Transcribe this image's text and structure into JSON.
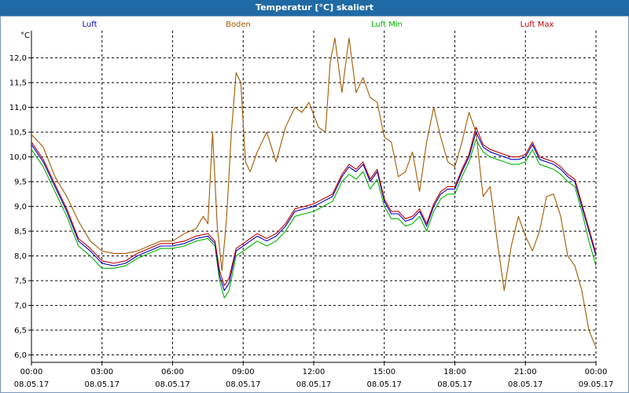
{
  "window": {
    "title": "Temperatur [°C] skaliert"
  },
  "chart_data": {
    "type": "line",
    "title": "Temperatur [°C] skaliert",
    "ylabel": "°C",
    "xlabel": "",
    "ylim": [
      5.85,
      12.55
    ],
    "yticks": [
      6.0,
      6.5,
      7.0,
      7.5,
      8.0,
      8.5,
      9.0,
      9.5,
      10.0,
      10.5,
      11.0,
      11.5,
      12.0
    ],
    "ytick_labels": [
      "6,0",
      "6,5",
      "7,0",
      "7,5",
      "8,0",
      "8,5",
      "9,0",
      "9,5",
      "10,0",
      "10,5",
      "11,0",
      "11,5",
      "12,0"
    ],
    "xlim_hours": [
      0,
      24
    ],
    "xticks": [
      {
        "h": 0,
        "time": "00:00",
        "date": "08.05.17"
      },
      {
        "h": 3,
        "time": "03:00",
        "date": "08.05.17"
      },
      {
        "h": 6,
        "time": "06:00",
        "date": "08.05.17"
      },
      {
        "h": 9,
        "time": "09:00",
        "date": "08.05.17"
      },
      {
        "h": 12,
        "time": "12:00",
        "date": "08.05.17"
      },
      {
        "h": 15,
        "time": "15:00",
        "date": "08.05.17"
      },
      {
        "h": 18,
        "time": "18:00",
        "date": "08.05.17"
      },
      {
        "h": 21,
        "time": "21:00",
        "date": "08.05.17"
      },
      {
        "h": 24,
        "time": "00:00",
        "date": "09.05.17"
      }
    ],
    "grid": true,
    "legend_position": "top",
    "series": [
      {
        "name": "Luft",
        "color": "#0000c0",
        "points": [
          [
            0,
            10.25
          ],
          [
            0.5,
            9.9
          ],
          [
            1,
            9.4
          ],
          [
            1.5,
            8.9
          ],
          [
            2,
            8.3
          ],
          [
            2.5,
            8.1
          ],
          [
            3,
            7.85
          ],
          [
            3.5,
            7.8
          ],
          [
            4,
            7.85
          ],
          [
            4.5,
            8.0
          ],
          [
            5,
            8.1
          ],
          [
            5.5,
            8.2
          ],
          [
            6,
            8.2
          ],
          [
            6.5,
            8.25
          ],
          [
            7,
            8.35
          ],
          [
            7.5,
            8.4
          ],
          [
            7.8,
            8.25
          ],
          [
            8,
            7.6
          ],
          [
            8.2,
            7.3
          ],
          [
            8.4,
            7.45
          ],
          [
            8.7,
            8.1
          ],
          [
            9,
            8.2
          ],
          [
            9.3,
            8.3
          ],
          [
            9.6,
            8.4
          ],
          [
            10,
            8.3
          ],
          [
            10.4,
            8.4
          ],
          [
            10.8,
            8.6
          ],
          [
            11.2,
            8.9
          ],
          [
            11.6,
            8.95
          ],
          [
            12,
            9.0
          ],
          [
            12.4,
            9.1
          ],
          [
            12.8,
            9.2
          ],
          [
            13.2,
            9.6
          ],
          [
            13.5,
            9.8
          ],
          [
            13.8,
            9.7
          ],
          [
            14.1,
            9.85
          ],
          [
            14.4,
            9.5
          ],
          [
            14.7,
            9.7
          ],
          [
            15,
            9.1
          ],
          [
            15.3,
            8.85
          ],
          [
            15.6,
            8.85
          ],
          [
            15.9,
            8.7
          ],
          [
            16.2,
            8.75
          ],
          [
            16.5,
            8.9
          ],
          [
            16.8,
            8.6
          ],
          [
            17.1,
            9.0
          ],
          [
            17.4,
            9.25
          ],
          [
            17.7,
            9.35
          ],
          [
            18,
            9.35
          ],
          [
            18.3,
            9.7
          ],
          [
            18.6,
            10.0
          ],
          [
            18.9,
            10.5
          ],
          [
            19.2,
            10.2
          ],
          [
            19.5,
            10.1
          ],
          [
            19.8,
            10.05
          ],
          [
            20.1,
            10.0
          ],
          [
            20.4,
            9.95
          ],
          [
            20.7,
            9.95
          ],
          [
            21,
            10.0
          ],
          [
            21.3,
            10.25
          ],
          [
            21.6,
            9.95
          ],
          [
            21.9,
            9.9
          ],
          [
            22.2,
            9.85
          ],
          [
            22.5,
            9.75
          ],
          [
            22.8,
            9.6
          ],
          [
            23.1,
            9.5
          ],
          [
            23.4,
            9.0
          ],
          [
            23.7,
            8.5
          ],
          [
            24,
            8.0
          ]
        ]
      },
      {
        "name": "Boden",
        "color": "#a05a00",
        "points": [
          [
            0,
            10.45
          ],
          [
            0.5,
            10.2
          ],
          [
            1,
            9.6
          ],
          [
            1.5,
            9.2
          ],
          [
            2,
            8.7
          ],
          [
            2.5,
            8.3
          ],
          [
            3,
            8.1
          ],
          [
            3.5,
            8.05
          ],
          [
            4,
            8.05
          ],
          [
            4.5,
            8.1
          ],
          [
            5,
            8.2
          ],
          [
            5.5,
            8.3
          ],
          [
            6,
            8.3
          ],
          [
            6.5,
            8.45
          ],
          [
            7,
            8.55
          ],
          [
            7.3,
            8.8
          ],
          [
            7.5,
            8.65
          ],
          [
            7.7,
            10.5
          ],
          [
            7.9,
            8.6
          ],
          [
            8.1,
            7.7
          ],
          [
            8.3,
            8.8
          ],
          [
            8.5,
            10.5
          ],
          [
            8.7,
            11.7
          ],
          [
            8.9,
            11.5
          ],
          [
            9.1,
            9.9
          ],
          [
            9.3,
            9.7
          ],
          [
            9.6,
            10.1
          ],
          [
            10,
            10.5
          ],
          [
            10.4,
            9.9
          ],
          [
            10.8,
            10.6
          ],
          [
            11.2,
            11.0
          ],
          [
            11.5,
            10.9
          ],
          [
            11.8,
            11.1
          ],
          [
            12.2,
            10.6
          ],
          [
            12.5,
            10.5
          ],
          [
            12.7,
            11.9
          ],
          [
            12.9,
            12.4
          ],
          [
            13.2,
            11.3
          ],
          [
            13.5,
            12.4
          ],
          [
            13.8,
            11.3
          ],
          [
            14.1,
            11.6
          ],
          [
            14.4,
            11.2
          ],
          [
            14.7,
            11.1
          ],
          [
            15,
            10.4
          ],
          [
            15.3,
            10.3
          ],
          [
            15.6,
            9.6
          ],
          [
            15.9,
            9.7
          ],
          [
            16.2,
            10.1
          ],
          [
            16.5,
            9.3
          ],
          [
            16.8,
            10.3
          ],
          [
            17.1,
            11.0
          ],
          [
            17.4,
            10.4
          ],
          [
            17.7,
            9.9
          ],
          [
            18,
            9.8
          ],
          [
            18.3,
            10.3
          ],
          [
            18.6,
            10.9
          ],
          [
            18.9,
            10.5
          ],
          [
            19.2,
            9.2
          ],
          [
            19.5,
            9.4
          ],
          [
            19.8,
            8.3
          ],
          [
            20.1,
            7.3
          ],
          [
            20.4,
            8.2
          ],
          [
            20.7,
            8.8
          ],
          [
            21,
            8.4
          ],
          [
            21.3,
            8.1
          ],
          [
            21.6,
            8.5
          ],
          [
            21.9,
            9.2
          ],
          [
            22.2,
            9.25
          ],
          [
            22.5,
            8.8
          ],
          [
            22.8,
            8.0
          ],
          [
            23.1,
            7.8
          ],
          [
            23.4,
            7.3
          ],
          [
            23.7,
            6.5
          ],
          [
            24,
            6.15
          ]
        ]
      },
      {
        "name": "Luft Min",
        "color": "#00b000",
        "points": [
          [
            0,
            10.15
          ],
          [
            0.5,
            9.8
          ],
          [
            1,
            9.3
          ],
          [
            1.5,
            8.8
          ],
          [
            2,
            8.2
          ],
          [
            2.5,
            8.0
          ],
          [
            3,
            7.75
          ],
          [
            3.5,
            7.75
          ],
          [
            4,
            7.8
          ],
          [
            4.5,
            7.95
          ],
          [
            5,
            8.05
          ],
          [
            5.5,
            8.15
          ],
          [
            6,
            8.15
          ],
          [
            6.5,
            8.2
          ],
          [
            7,
            8.3
          ],
          [
            7.5,
            8.35
          ],
          [
            7.8,
            8.2
          ],
          [
            8,
            7.5
          ],
          [
            8.2,
            7.15
          ],
          [
            8.4,
            7.3
          ],
          [
            8.7,
            8.0
          ],
          [
            9,
            8.1
          ],
          [
            9.3,
            8.2
          ],
          [
            9.6,
            8.3
          ],
          [
            10,
            8.2
          ],
          [
            10.4,
            8.3
          ],
          [
            10.8,
            8.5
          ],
          [
            11.2,
            8.8
          ],
          [
            11.6,
            8.85
          ],
          [
            12,
            8.9
          ],
          [
            12.4,
            9.0
          ],
          [
            12.8,
            9.1
          ],
          [
            13.2,
            9.5
          ],
          [
            13.5,
            9.65
          ],
          [
            13.8,
            9.55
          ],
          [
            14.1,
            9.7
          ],
          [
            14.4,
            9.35
          ],
          [
            14.7,
            9.55
          ],
          [
            15,
            9.0
          ],
          [
            15.3,
            8.75
          ],
          [
            15.6,
            8.75
          ],
          [
            15.9,
            8.6
          ],
          [
            16.2,
            8.65
          ],
          [
            16.5,
            8.8
          ],
          [
            16.8,
            8.5
          ],
          [
            17.1,
            8.9
          ],
          [
            17.4,
            9.15
          ],
          [
            17.7,
            9.25
          ],
          [
            18,
            9.25
          ],
          [
            18.3,
            9.6
          ],
          [
            18.6,
            9.9
          ],
          [
            18.9,
            10.35
          ],
          [
            19.2,
            10.1
          ],
          [
            19.5,
            10.0
          ],
          [
            19.8,
            9.95
          ],
          [
            20.1,
            9.9
          ],
          [
            20.4,
            9.85
          ],
          [
            20.7,
            9.85
          ],
          [
            21,
            9.9
          ],
          [
            21.3,
            10.15
          ],
          [
            21.6,
            9.85
          ],
          [
            21.9,
            9.8
          ],
          [
            22.2,
            9.75
          ],
          [
            22.5,
            9.65
          ],
          [
            22.8,
            9.5
          ],
          [
            23.1,
            9.4
          ],
          [
            23.4,
            8.9
          ],
          [
            23.7,
            8.3
          ],
          [
            24,
            7.8
          ]
        ]
      },
      {
        "name": "Luft Max",
        "color": "#c00000",
        "points": [
          [
            0,
            10.3
          ],
          [
            0.5,
            9.95
          ],
          [
            1,
            9.45
          ],
          [
            1.5,
            8.95
          ],
          [
            2,
            8.35
          ],
          [
            2.5,
            8.15
          ],
          [
            3,
            7.9
          ],
          [
            3.5,
            7.85
          ],
          [
            4,
            7.9
          ],
          [
            4.5,
            8.05
          ],
          [
            5,
            8.15
          ],
          [
            5.5,
            8.25
          ],
          [
            6,
            8.25
          ],
          [
            6.5,
            8.3
          ],
          [
            7,
            8.4
          ],
          [
            7.5,
            8.45
          ],
          [
            7.8,
            8.3
          ],
          [
            8,
            7.7
          ],
          [
            8.2,
            7.4
          ],
          [
            8.4,
            7.55
          ],
          [
            8.7,
            8.15
          ],
          [
            9,
            8.25
          ],
          [
            9.3,
            8.35
          ],
          [
            9.6,
            8.45
          ],
          [
            10,
            8.35
          ],
          [
            10.4,
            8.45
          ],
          [
            10.8,
            8.65
          ],
          [
            11.2,
            8.95
          ],
          [
            11.6,
            9.0
          ],
          [
            12,
            9.05
          ],
          [
            12.4,
            9.15
          ],
          [
            12.8,
            9.25
          ],
          [
            13.2,
            9.65
          ],
          [
            13.5,
            9.85
          ],
          [
            13.8,
            9.75
          ],
          [
            14.1,
            9.9
          ],
          [
            14.4,
            9.55
          ],
          [
            14.7,
            9.75
          ],
          [
            15,
            9.15
          ],
          [
            15.3,
            8.9
          ],
          [
            15.6,
            8.9
          ],
          [
            15.9,
            8.75
          ],
          [
            16.2,
            8.8
          ],
          [
            16.5,
            8.95
          ],
          [
            16.8,
            8.65
          ],
          [
            17.1,
            9.05
          ],
          [
            17.4,
            9.3
          ],
          [
            17.7,
            9.4
          ],
          [
            18,
            9.4
          ],
          [
            18.3,
            9.75
          ],
          [
            18.6,
            10.05
          ],
          [
            18.9,
            10.6
          ],
          [
            19.2,
            10.25
          ],
          [
            19.5,
            10.15
          ],
          [
            19.8,
            10.1
          ],
          [
            20.1,
            10.05
          ],
          [
            20.4,
            10.0
          ],
          [
            20.7,
            10.0
          ],
          [
            21,
            10.05
          ],
          [
            21.3,
            10.3
          ],
          [
            21.6,
            10.0
          ],
          [
            21.9,
            9.95
          ],
          [
            22.2,
            9.9
          ],
          [
            22.5,
            9.8
          ],
          [
            22.8,
            9.65
          ],
          [
            23.1,
            9.55
          ],
          [
            23.4,
            9.05
          ],
          [
            23.7,
            8.55
          ],
          [
            24,
            8.05
          ]
        ]
      }
    ]
  }
}
